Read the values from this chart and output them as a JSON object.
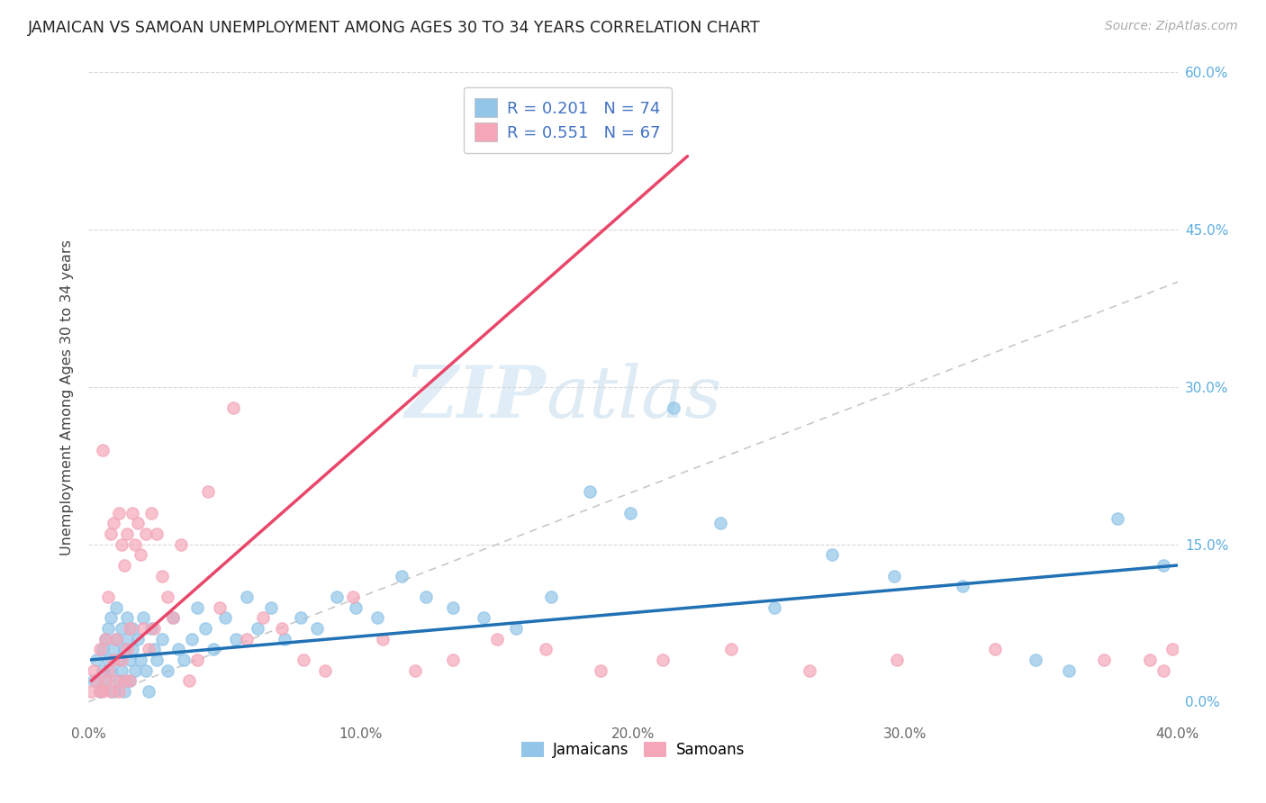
{
  "title": "JAMAICAN VS SAMOAN UNEMPLOYMENT AMONG AGES 30 TO 34 YEARS CORRELATION CHART",
  "source": "Source: ZipAtlas.com",
  "ylabel": "Unemployment Among Ages 30 to 34 years",
  "xlim": [
    0.0,
    0.4
  ],
  "ylim": [
    -0.02,
    0.6
  ],
  "xticks": [
    0.0,
    0.1,
    0.2,
    0.3,
    0.4
  ],
  "yticks_right": [
    0.0,
    0.15,
    0.3,
    0.45,
    0.6
  ],
  "xticklabels": [
    "0.0%",
    "10.0%",
    "20.0%",
    "30.0%",
    "40.0%"
  ],
  "yticklabels_right": [
    "0.0%",
    "15.0%",
    "30.0%",
    "45.0%",
    "60.0%"
  ],
  "jamaicans_color": "#92c5e8",
  "samoans_color": "#f4a7b9",
  "jamaicans_line_color": "#2171b5",
  "samoans_line_color": "#e8476a",
  "R_jamaicans": 0.201,
  "N_jamaicans": 74,
  "R_samoans": 0.551,
  "N_samoans": 67,
  "legend_label_jamaicans": "Jamaicans",
  "legend_label_samoans": "Samoans",
  "watermark_zip": "ZIP",
  "watermark_atlas": "atlas",
  "jamaicans_x": [
    0.002,
    0.003,
    0.004,
    0.005,
    0.005,
    0.006,
    0.006,
    0.007,
    0.007,
    0.008,
    0.008,
    0.009,
    0.009,
    0.01,
    0.01,
    0.011,
    0.011,
    0.012,
    0.012,
    0.013,
    0.013,
    0.014,
    0.014,
    0.015,
    0.015,
    0.016,
    0.016,
    0.017,
    0.018,
    0.019,
    0.02,
    0.021,
    0.022,
    0.023,
    0.024,
    0.025,
    0.027,
    0.029,
    0.031,
    0.033,
    0.035,
    0.038,
    0.04,
    0.043,
    0.046,
    0.05,
    0.054,
    0.058,
    0.062,
    0.067,
    0.072,
    0.078,
    0.084,
    0.091,
    0.098,
    0.106,
    0.115,
    0.124,
    0.134,
    0.145,
    0.157,
    0.17,
    0.184,
    0.199,
    0.215,
    0.232,
    0.252,
    0.273,
    0.296,
    0.321,
    0.348,
    0.36,
    0.378,
    0.395
  ],
  "jamaicans_y": [
    0.02,
    0.04,
    0.01,
    0.05,
    0.03,
    0.06,
    0.02,
    0.07,
    0.04,
    0.03,
    0.08,
    0.05,
    0.01,
    0.06,
    0.09,
    0.04,
    0.02,
    0.07,
    0.03,
    0.05,
    0.01,
    0.08,
    0.06,
    0.04,
    0.02,
    0.07,
    0.05,
    0.03,
    0.06,
    0.04,
    0.08,
    0.03,
    0.01,
    0.07,
    0.05,
    0.04,
    0.06,
    0.03,
    0.08,
    0.05,
    0.04,
    0.06,
    0.09,
    0.07,
    0.05,
    0.08,
    0.06,
    0.1,
    0.07,
    0.09,
    0.06,
    0.08,
    0.07,
    0.1,
    0.09,
    0.08,
    0.12,
    0.1,
    0.09,
    0.08,
    0.07,
    0.1,
    0.2,
    0.18,
    0.28,
    0.17,
    0.09,
    0.14,
    0.12,
    0.11,
    0.04,
    0.03,
    0.175,
    0.13
  ],
  "samoans_x": [
    0.001,
    0.002,
    0.003,
    0.004,
    0.004,
    0.005,
    0.005,
    0.006,
    0.006,
    0.007,
    0.007,
    0.008,
    0.008,
    0.009,
    0.009,
    0.01,
    0.01,
    0.011,
    0.011,
    0.012,
    0.012,
    0.013,
    0.013,
    0.014,
    0.014,
    0.015,
    0.015,
    0.016,
    0.017,
    0.018,
    0.019,
    0.02,
    0.021,
    0.022,
    0.023,
    0.024,
    0.025,
    0.027,
    0.029,
    0.031,
    0.034,
    0.037,
    0.04,
    0.044,
    0.048,
    0.053,
    0.058,
    0.064,
    0.071,
    0.079,
    0.087,
    0.097,
    0.108,
    0.12,
    0.134,
    0.15,
    0.168,
    0.188,
    0.211,
    0.236,
    0.265,
    0.297,
    0.333,
    0.373,
    0.39,
    0.395,
    0.398
  ],
  "samoans_y": [
    0.01,
    0.03,
    0.02,
    0.05,
    0.01,
    0.24,
    0.01,
    0.06,
    0.02,
    0.1,
    0.03,
    0.16,
    0.01,
    0.17,
    0.04,
    0.06,
    0.02,
    0.18,
    0.01,
    0.15,
    0.04,
    0.13,
    0.02,
    0.16,
    0.05,
    0.07,
    0.02,
    0.18,
    0.15,
    0.17,
    0.14,
    0.07,
    0.16,
    0.05,
    0.18,
    0.07,
    0.16,
    0.12,
    0.1,
    0.08,
    0.15,
    0.02,
    0.04,
    0.2,
    0.09,
    0.28,
    0.06,
    0.08,
    0.07,
    0.04,
    0.03,
    0.1,
    0.06,
    0.03,
    0.04,
    0.06,
    0.05,
    0.03,
    0.04,
    0.05,
    0.03,
    0.04,
    0.05,
    0.04,
    0.04,
    0.03,
    0.05
  ],
  "jamaicans_trend": [
    0.001,
    0.4
  ],
  "jamaicans_trend_y": [
    0.04,
    0.13
  ],
  "samoans_trend": [
    0.001,
    0.22
  ],
  "samoans_trend_y": [
    0.02,
    0.52
  ]
}
